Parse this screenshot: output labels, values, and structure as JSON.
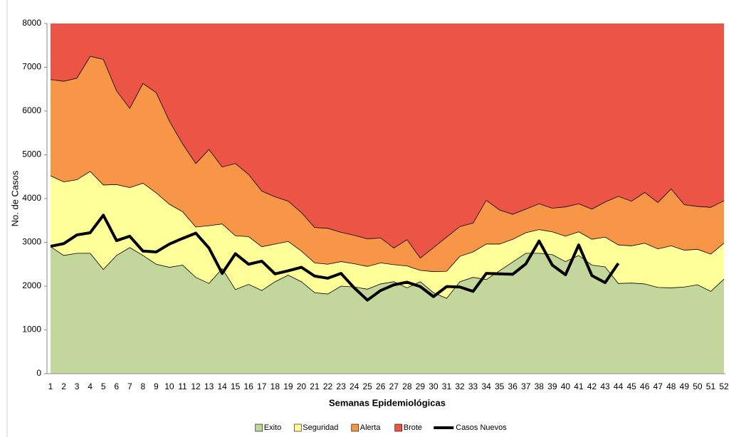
{
  "chart_data": {
    "type": "area",
    "stacked": true,
    "y_label": "No. de Casos",
    "x_label": "Semanas Epidemiológicas",
    "categories": [
      "1",
      "2",
      "3",
      "4",
      "5",
      "6",
      "7",
      "8",
      "9",
      "10",
      "11",
      "12",
      "13",
      "14",
      "15",
      "16",
      "17",
      "18",
      "19",
      "20",
      "21",
      "22",
      "23",
      "24",
      "25",
      "26",
      "27",
      "28",
      "29",
      "30",
      "31",
      "32",
      "33",
      "34",
      "35",
      "36",
      "37",
      "38",
      "39",
      "40",
      "41",
      "42",
      "43",
      "44",
      "45",
      "46",
      "47",
      "48",
      "49",
      "50",
      "51",
      "52"
    ],
    "ylim": [
      0,
      8000
    ],
    "yticks": [
      0,
      1000,
      2000,
      3000,
      4000,
      5000,
      6000,
      7000,
      8000
    ],
    "legend": "bottom",
    "series": [
      {
        "name": "Exito",
        "color": "#c3d69b",
        "values": [
          2900,
          2700,
          2750,
          2750,
          2380,
          2700,
          2880,
          2700,
          2500,
          2430,
          2480,
          2200,
          2060,
          2400,
          1920,
          2040,
          1900,
          2100,
          2250,
          2100,
          1850,
          1820,
          2000,
          1980,
          1930,
          2050,
          2100,
          1960,
          2100,
          1850,
          1720,
          2100,
          2200,
          2150,
          2350,
          2550,
          2750,
          2750,
          2720,
          2560,
          2700,
          2480,
          2440,
          2060,
          2070,
          2050,
          1970,
          1960,
          1980,
          2030,
          1880,
          2160
        ]
      },
      {
        "name": "Seguridad",
        "color": "#ffff99",
        "values": [
          1620,
          1680,
          1680,
          1870,
          1930,
          1620,
          1370,
          1650,
          1630,
          1440,
          1220,
          1150,
          1320,
          1020,
          1230,
          1090,
          1000,
          860,
          770,
          700,
          680,
          680,
          560,
          530,
          520,
          480,
          390,
          500,
          260,
          480,
          620,
          580,
          580,
          810,
          610,
          520,
          470,
          540,
          520,
          580,
          540,
          590,
          680,
          880,
          850,
          930,
          880,
          960,
          840,
          810,
          850,
          820
        ]
      },
      {
        "name": "Alerta",
        "color": "#f79646",
        "values": [
          2200,
          2300,
          2320,
          2630,
          2870,
          2140,
          1810,
          2280,
          2290,
          1900,
          1550,
          1450,
          1740,
          1300,
          1650,
          1420,
          1270,
          1080,
          920,
          880,
          810,
          820,
          670,
          650,
          630,
          570,
          380,
          600,
          280,
          550,
          780,
          680,
          660,
          1000,
          780,
          570,
          540,
          590,
          540,
          670,
          640,
          690,
          800,
          1110,
          1020,
          1160,
          1060,
          1300,
          1040,
          980,
          1070,
          970
        ]
      },
      {
        "name": "Brote",
        "color": "#ec5546",
        "values": [
          1280,
          1320,
          1250,
          750,
          820,
          1540,
          1940,
          1370,
          1580,
          2230,
          2750,
          3200,
          2880,
          3280,
          3200,
          3450,
          3830,
          3960,
          4060,
          4320,
          4660,
          4680,
          4770,
          4840,
          4920,
          4900,
          5130,
          4940,
          5360,
          5120,
          4880,
          4640,
          4560,
          4040,
          4260,
          4360,
          4240,
          4120,
          4220,
          4190,
          4120,
          4240,
          4080,
          3950,
          4060,
          3860,
          4090,
          3780,
          4140,
          4180,
          4200,
          4050
        ]
      },
      {
        "name": "Casos Nuevos",
        "type": "line",
        "color": "#000000",
        "values": [
          2910,
          2970,
          3170,
          3220,
          3620,
          3040,
          3140,
          2800,
          2780,
          2960,
          3090,
          3210,
          2870,
          2290,
          2740,
          2500,
          2570,
          2280,
          2350,
          2430,
          2230,
          2180,
          2290,
          1960,
          1680,
          1900,
          2030,
          2090,
          1990,
          1760,
          1990,
          1980,
          1880,
          2290,
          2280,
          2270,
          2510,
          3030,
          2480,
          2260,
          2940,
          2240,
          2080,
          2520,
          null,
          null,
          null,
          null,
          null,
          null,
          null,
          null
        ]
      }
    ]
  }
}
